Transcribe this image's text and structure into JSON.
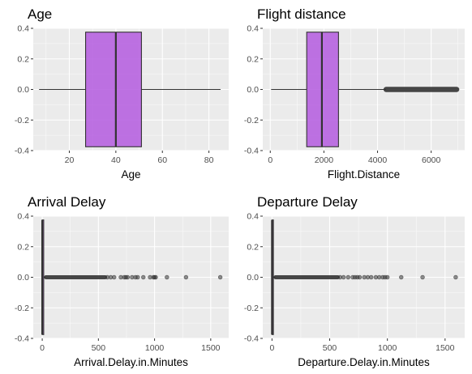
{
  "colors": {
    "panel_bg": "#ebebeb",
    "grid_major": "#ffffff",
    "box_fill": "#b45bdf",
    "box_line": "#333333",
    "outlier": "#333333"
  },
  "chart_data": [
    {
      "type": "boxplot",
      "title": "Age",
      "xlabel": "Age",
      "xlim": [
        4.5,
        88.5
      ],
      "ylim": [
        -0.4,
        0.4
      ],
      "xticks": [
        20,
        40,
        60,
        80
      ],
      "yticks": [
        -0.4,
        -0.2,
        0.0,
        0.2,
        0.4
      ],
      "ytick_labels": [
        "-0.4",
        "-0.2",
        "0.0",
        "0.2",
        "0.4"
      ],
      "box": {
        "whisker_low": 7,
        "q1": 27,
        "median": 40,
        "q3": 51,
        "whisker_high": 85
      },
      "outliers": []
    },
    {
      "type": "boxplot",
      "title": "Flight distance",
      "xlabel": "Flight.Distance",
      "xlim": [
        -280,
        7250
      ],
      "ylim": [
        -0.4,
        0.4
      ],
      "xticks": [
        0,
        2000,
        4000,
        6000
      ],
      "yticks": [
        -0.4,
        -0.2,
        0.0,
        0.2,
        0.4
      ],
      "ytick_labels": [
        "-0.4",
        "-0.2",
        "0.0",
        "0.2",
        "0.4"
      ],
      "box": {
        "whisker_low": 31,
        "q1": 1359,
        "median": 1925,
        "q3": 2544,
        "whisker_high": 4320
      },
      "outliers": {
        "dense_from": 4320,
        "dense_to": 6950
      }
    },
    {
      "type": "boxplot",
      "title": "Arrival Delay",
      "xlabel": "Arrival.Delay.in.Minutes",
      "xlim": [
        -80,
        1660
      ],
      "ylim": [
        -0.4,
        0.4
      ],
      "xticks": [
        0,
        500,
        1000,
        1500
      ],
      "yticks": [
        -0.4,
        -0.2,
        0.0,
        0.2,
        0.4
      ],
      "ytick_labels": [
        "-0.4",
        "-0.2",
        "0.0",
        "0.2",
        "0.4"
      ],
      "box": {
        "whisker_low": 0,
        "q1": 0,
        "median": 0,
        "q3": 13,
        "whisker_high": 32
      },
      "outliers": {
        "dense_from": 33,
        "dense_to": 560,
        "points": [
          580,
          610,
          640,
          700,
          730,
          745,
          760,
          800,
          830,
          850,
          900,
          960,
          990,
          1000,
          1010,
          1110,
          1280,
          1585
        ]
      }
    },
    {
      "type": "boxplot",
      "title": "Departure Delay",
      "xlabel": "Departure.Delay.in.Minutes",
      "xlim": [
        -80,
        1670
      ],
      "ylim": [
        -0.4,
        0.4
      ],
      "xticks": [
        0,
        500,
        1000,
        1500
      ],
      "yticks": [
        -0.4,
        -0.2,
        0.0,
        0.2,
        0.4
      ],
      "ytick_labels": [
        "-0.4",
        "-0.2",
        "0.0",
        "0.2",
        "0.4"
      ],
      "box": {
        "whisker_low": 0,
        "q1": 0,
        "median": 0,
        "q3": 12,
        "whisker_high": 30
      },
      "outliers": {
        "dense_from": 31,
        "dense_to": 570,
        "points": [
          590,
          620,
          660,
          700,
          720,
          740,
          760,
          800,
          830,
          860,
          900,
          930,
          960,
          980,
          1000,
          1120,
          1305,
          1592
        ]
      }
    }
  ]
}
